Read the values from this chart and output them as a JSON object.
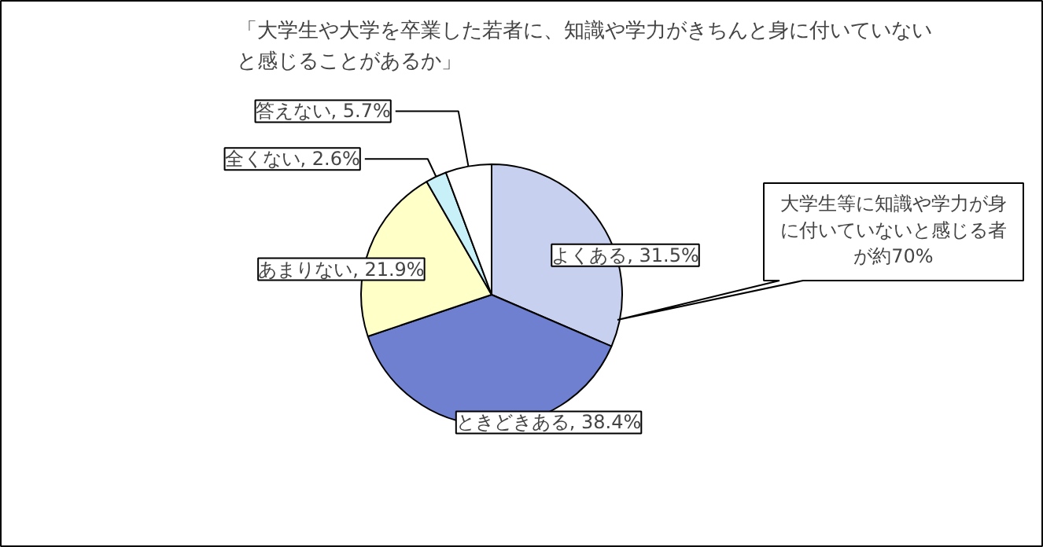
{
  "chart_data": {
    "type": "pie",
    "title": "「大学生や大学を卒業した若者に、知識や学力がきちんと身に付いていないと感じることがあるか」",
    "categories": [
      "よくある",
      "ときどきある",
      "あまりない",
      "全くない",
      "答えない"
    ],
    "values": [
      31.5,
      38.4,
      21.9,
      2.6,
      5.7
    ],
    "value_labels": [
      "31.5%",
      "38.4%",
      "21.9%",
      "2.6%",
      "5.7%"
    ],
    "colors": [
      "#c8d0f0",
      "#7080d0",
      "#ffffc8",
      "#c8f0f8",
      "#ffffff"
    ],
    "annotations": [
      "大学生等に知識や学力が身に付いていないと感じる者が約70%"
    ]
  }
}
